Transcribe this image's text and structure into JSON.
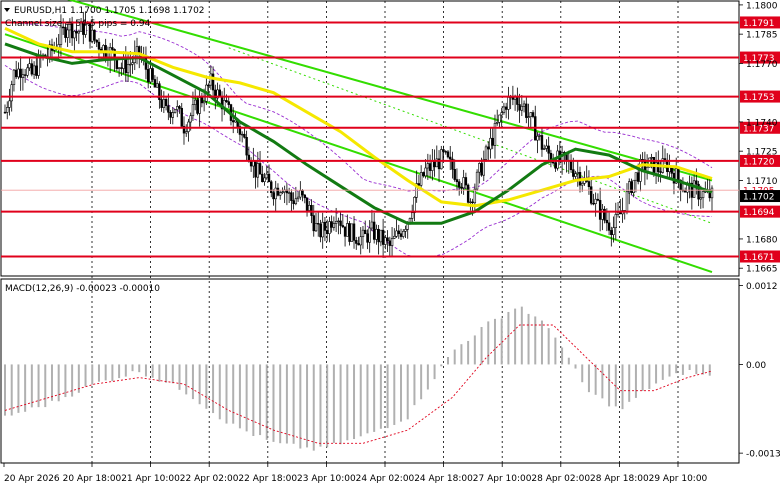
{
  "header": {
    "symbol_line": "EURUSD,H1  1.1700 1.1705 1.1698 1.1702",
    "channel_text": "Channel size = 54.5 pips = 0.94"
  },
  "colors": {
    "background": "#ffffff",
    "candle": "#000000",
    "level": "#e0001b",
    "level_label_bg": "#e0001b",
    "channel": "#33dd00",
    "channel_mid": "#33dd00",
    "ma_slow": "#f5e800",
    "ma_fast": "#127a12",
    "bollinger": "#9a2fd1",
    "macd_hist": "#b0b0b0",
    "macd_signal": "#e0001b",
    "price_tag": "#000000",
    "grid": "#000000"
  },
  "chart_data": {
    "type": "candlestick",
    "symbol": "EURUSD",
    "timeframe": "H1",
    "price_axis": {
      "ticks": [
        "1.1800",
        "1.1785",
        "1.1770",
        "1.1740",
        "1.1725",
        "1.1710",
        "1.1680",
        "1.1665"
      ],
      "ylim": [
        1.1661,
        1.1802
      ]
    },
    "time_axis": {
      "labels": [
        "20 Apr 2026",
        "20 Apr 18:00",
        "21 Apr 10:00",
        "22 Apr 02:00",
        "22 Apr 18:00",
        "23 Apr 10:00",
        "24 Apr 02:00",
        "24 Apr 18:00",
        "27 Apr 10:00",
        "28 Apr 02:00",
        "28 Apr 18:00",
        "29 Apr 10:00"
      ]
    },
    "levels": [
      "1.1791",
      "1.1773",
      "1.1753",
      "1.1737",
      "1.1720",
      "1.1694",
      "1.1671"
    ],
    "current_price": "1.1702",
    "current_price_faint": "1.1705",
    "macd": {
      "label": "MACD(12,26,9) -0.00023 -0.00010",
      "ticks": [
        "0.0012",
        "0.00",
        "-0.00135"
      ],
      "ylim": [
        -0.0015,
        0.0013
      ]
    },
    "price_path": [
      [
        0,
        1.1745
      ],
      [
        4,
        1.1765
      ],
      [
        8,
        1.1768
      ],
      [
        12,
        1.1764
      ],
      [
        16,
        1.1772
      ],
      [
        20,
        1.1775
      ],
      [
        24,
        1.1782
      ],
      [
        28,
        1.179
      ],
      [
        32,
        1.1786
      ],
      [
        36,
        1.1789
      ],
      [
        40,
        1.1782
      ],
      [
        44,
        1.1778
      ],
      [
        48,
        1.1775
      ],
      [
        52,
        1.1768
      ],
      [
        56,
        1.177
      ],
      [
        60,
        1.1775
      ],
      [
        64,
        1.1765
      ],
      [
        68,
        1.1755
      ],
      [
        72,
        1.1745
      ],
      [
        76,
        1.1748
      ],
      [
        80,
        1.1738
      ],
      [
        84,
        1.1745
      ],
      [
        88,
        1.1752
      ],
      [
        92,
        1.176
      ],
      [
        96,
        1.1752
      ],
      [
        100,
        1.1745
      ],
      [
        104,
        1.1738
      ],
      [
        108,
        1.1728
      ],
      [
        112,
        1.1715
      ],
      [
        116,
        1.171
      ],
      [
        120,
        1.1705
      ],
      [
        124,
        1.1708
      ],
      [
        128,
        1.17
      ],
      [
        132,
        1.1702
      ],
      [
        136,
        1.1695
      ],
      [
        140,
        1.1683
      ],
      [
        144,
        1.1686
      ],
      [
        148,
        1.1694
      ],
      [
        152,
        1.1685
      ],
      [
        156,
        1.1682
      ],
      [
        160,
        1.168
      ],
      [
        164,
        1.1684
      ],
      [
        168,
        1.168
      ],
      [
        172,
        1.1676
      ],
      [
        176,
        1.1683
      ],
      [
        180,
        1.169
      ],
      [
        184,
        1.1705
      ],
      [
        188,
        1.1715
      ],
      [
        192,
        1.1718
      ],
      [
        196,
        1.1722
      ],
      [
        200,
        1.1716
      ],
      [
        204,
        1.171
      ],
      [
        208,
        1.17
      ],
      [
        212,
        1.1714
      ],
      [
        216,
        1.1726
      ],
      [
        220,
        1.1738
      ],
      [
        224,
        1.175
      ],
      [
        228,
        1.1752
      ],
      [
        232,
        1.1748
      ],
      [
        236,
        1.1738
      ],
      [
        240,
        1.1728
      ],
      [
        244,
        1.1722
      ],
      [
        248,
        1.172
      ],
      [
        252,
        1.1718
      ],
      [
        256,
        1.1714
      ],
      [
        260,
        1.1708
      ],
      [
        264,
        1.1698
      ],
      [
        268,
        1.169
      ],
      [
        272,
        1.1686
      ],
      [
        276,
        1.1695
      ],
      [
        280,
        1.1708
      ],
      [
        284,
        1.1716
      ],
      [
        288,
        1.1718
      ],
      [
        292,
        1.1716
      ],
      [
        296,
        1.1718
      ],
      [
        300,
        1.1712
      ],
      [
        304,
        1.1706
      ],
      [
        308,
        1.1705
      ],
      [
        312,
        1.1703
      ],
      [
        316,
        1.1702
      ]
    ],
    "ma_slow": [
      [
        0,
        1.1788
      ],
      [
        15,
        1.178
      ],
      [
        30,
        1.1776
      ],
      [
        45,
        1.1776
      ],
      [
        60,
        1.1775
      ],
      [
        75,
        1.1768
      ],
      [
        90,
        1.1763
      ],
      [
        105,
        1.176
      ],
      [
        120,
        1.1755
      ],
      [
        135,
        1.1745
      ],
      [
        150,
        1.1735
      ],
      [
        165,
        1.1722
      ],
      [
        180,
        1.171
      ],
      [
        195,
        1.1699
      ],
      [
        210,
        1.1697
      ],
      [
        225,
        1.17
      ],
      [
        240,
        1.1705
      ],
      [
        255,
        1.171
      ],
      [
        270,
        1.1712
      ],
      [
        285,
        1.1718
      ],
      [
        300,
        1.1717
      ],
      [
        316,
        1.1711
      ]
    ],
    "ma_fast": [
      [
        0,
        1.178
      ],
      [
        15,
        1.1774
      ],
      [
        30,
        1.177
      ],
      [
        45,
        1.1772
      ],
      [
        60,
        1.1773
      ],
      [
        75,
        1.1764
      ],
      [
        90,
        1.1755
      ],
      [
        105,
        1.174
      ],
      [
        120,
        1.173
      ],
      [
        135,
        1.1718
      ],
      [
        150,
        1.1707
      ],
      [
        165,
        1.1696
      ],
      [
        180,
        1.1688
      ],
      [
        195,
        1.1688
      ],
      [
        210,
        1.1694
      ],
      [
        225,
        1.1705
      ],
      [
        240,
        1.1718
      ],
      [
        255,
        1.1726
      ],
      [
        270,
        1.1723
      ],
      [
        285,
        1.1715
      ],
      [
        300,
        1.171
      ],
      [
        316,
        1.1704
      ]
    ],
    "macd_hist": [
      [
        0,
        -0.0008
      ],
      [
        20,
        -0.0006
      ],
      [
        40,
        -0.0003
      ],
      [
        60,
        -0.0001
      ],
      [
        80,
        -0.0004
      ],
      [
        100,
        -0.0009
      ],
      [
        120,
        -0.0012
      ],
      [
        140,
        -0.0013
      ],
      [
        160,
        -0.0011
      ],
      [
        180,
        -0.0008
      ],
      [
        200,
        0.0002
      ],
      [
        215,
        0.0006
      ],
      [
        230,
        0.0009
      ],
      [
        245,
        0.0005
      ],
      [
        260,
        -0.0004
      ],
      [
        275,
        -0.0007
      ],
      [
        290,
        -0.0003
      ],
      [
        305,
        -0.0001
      ],
      [
        316,
        -0.0002
      ]
    ],
    "macd_signal": [
      [
        0,
        -0.0007
      ],
      [
        20,
        -0.0005
      ],
      [
        40,
        -0.0003
      ],
      [
        60,
        -0.0002
      ],
      [
        80,
        -0.0003
      ],
      [
        100,
        -0.0007
      ],
      [
        120,
        -0.001
      ],
      [
        140,
        -0.0012
      ],
      [
        160,
        -0.0012
      ],
      [
        180,
        -0.001
      ],
      [
        200,
        -0.0005
      ],
      [
        215,
        0.0001
      ],
      [
        230,
        0.0006
      ],
      [
        245,
        0.0006
      ],
      [
        260,
        0.0001
      ],
      [
        275,
        -0.0004
      ],
      [
        290,
        -0.0004
      ],
      [
        305,
        -0.0002
      ],
      [
        316,
        -0.0001
      ]
    ],
    "channels": [
      {
        "role": "upper_a",
        "from": [
          0,
          1.1812
        ],
        "to": [
          316,
          1.171
        ]
      },
      {
        "role": "lower_a",
        "from": [
          0,
          1.1785
        ],
        "to": [
          316,
          1.1663
        ]
      },
      {
        "role": "mid_a",
        "from": [
          100,
          1.1778
        ],
        "to": [
          316,
          1.1688
        ]
      }
    ]
  }
}
